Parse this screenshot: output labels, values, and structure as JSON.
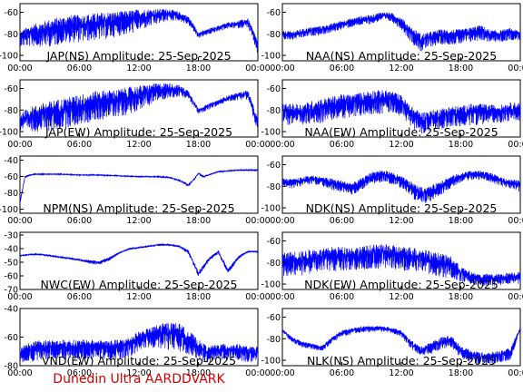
{
  "figure": {
    "credit": "Dunedin Ultra AARDDVARK",
    "trace_color": "#0000ff",
    "credit_color": "#d40000"
  },
  "chart_data": [
    {
      "type": "line",
      "title": "JAP(NS) Amplitude: 25-Sep-2025",
      "x_ticks": [
        "00:00",
        "06:00",
        "12:00",
        "18:00",
        "00:00"
      ],
      "y_ticks": [
        "-60",
        "-80",
        "-100"
      ],
      "ylim": [
        -105,
        -52
      ],
      "series": [
        {
          "x": [
            0,
            1,
            2,
            3,
            4,
            5,
            6,
            7,
            8,
            9,
            10,
            11,
            12,
            13,
            14,
            15,
            16,
            17,
            18,
            19,
            20,
            21,
            22,
            23,
            24
          ],
          "mean": [
            -82,
            -78,
            -76,
            -74,
            -72,
            -70,
            -70,
            -69,
            -68,
            -67,
            -66,
            -65,
            -63,
            -62,
            -61,
            -60,
            -62,
            -66,
            -80,
            -77,
            -74,
            -71,
            -70,
            -68,
            -90
          ],
          "spread": [
            10,
            14,
            16,
            18,
            18,
            18,
            18,
            18,
            18,
            18,
            16,
            16,
            14,
            12,
            10,
            8,
            6,
            6,
            4,
            4,
            4,
            4,
            5,
            6,
            10
          ]
        }
      ]
    },
    {
      "type": "line",
      "title": "NAA(NS) Amplitude: 25-Sep-2025",
      "x_ticks": [
        "00:00",
        "06:00",
        "12:00",
        "18:00",
        "00:00"
      ],
      "y_ticks": [
        "-60",
        "-80",
        "-100"
      ],
      "ylim": [
        -105,
        -52
      ],
      "series": [
        {
          "x": [
            0,
            1,
            2,
            3,
            4,
            5,
            6,
            7,
            8,
            9,
            10,
            11,
            12,
            13,
            14,
            15,
            16,
            17,
            18,
            19,
            20,
            21,
            22,
            23,
            24
          ],
          "mean": [
            -80,
            -80,
            -78,
            -76,
            -75,
            -73,
            -70,
            -68,
            -66,
            -65,
            -62,
            -63,
            -68,
            -78,
            -85,
            -82,
            -80,
            -80,
            -80,
            -78,
            -76,
            -80,
            -80,
            -78,
            -80
          ],
          "spread": [
            6,
            6,
            6,
            6,
            6,
            6,
            6,
            6,
            6,
            6,
            6,
            6,
            8,
            10,
            12,
            10,
            10,
            10,
            10,
            10,
            10,
            8,
            8,
            8,
            6
          ]
        }
      ]
    },
    {
      "type": "line",
      "title": "JAP(EW) Amplitude: 25-Sep-2025",
      "x_ticks": [
        "00:00",
        "06:00",
        "12:00",
        "18:00",
        "00:00"
      ],
      "y_ticks": [
        "-60",
        "-80",
        "-100"
      ],
      "ylim": [
        -105,
        -52
      ],
      "series": [
        {
          "x": [
            0,
            1,
            2,
            3,
            4,
            5,
            6,
            7,
            8,
            9,
            10,
            11,
            12,
            13,
            14,
            15,
            16,
            17,
            18,
            19,
            20,
            21,
            22,
            23,
            24
          ],
          "mean": [
            -88,
            -84,
            -82,
            -80,
            -78,
            -76,
            -74,
            -72,
            -70,
            -69,
            -68,
            -66,
            -64,
            -62,
            -60,
            -59,
            -60,
            -64,
            -80,
            -76,
            -72,
            -68,
            -66,
            -64,
            -92
          ],
          "spread": [
            12,
            16,
            18,
            20,
            20,
            20,
            20,
            20,
            20,
            18,
            18,
            18,
            16,
            14,
            12,
            10,
            8,
            6,
            4,
            4,
            4,
            4,
            5,
            6,
            10
          ]
        }
      ]
    },
    {
      "type": "line",
      "title": "NAA(EW) Amplitude: 25-Sep-2025",
      "x_ticks": [
        "00:00",
        "06:00",
        "12:00",
        "18:00",
        "00:00"
      ],
      "y_ticks": [
        "-60",
        "-80",
        "-100"
      ],
      "ylim": [
        -105,
        -52
      ],
      "series": [
        {
          "x": [
            0,
            1,
            2,
            3,
            4,
            5,
            6,
            7,
            8,
            9,
            10,
            11,
            12,
            13,
            14,
            15,
            16,
            17,
            18,
            19,
            20,
            21,
            22,
            23,
            24
          ],
          "mean": [
            -80,
            -80,
            -80,
            -78,
            -76,
            -74,
            -72,
            -72,
            -70,
            -68,
            -68,
            -68,
            -72,
            -82,
            -88,
            -86,
            -84,
            -82,
            -82,
            -80,
            -80,
            -80,
            -80,
            -78,
            -78
          ],
          "spread": [
            14,
            14,
            14,
            16,
            16,
            16,
            16,
            16,
            16,
            16,
            16,
            14,
            14,
            14,
            14,
            14,
            14,
            14,
            14,
            14,
            14,
            12,
            12,
            12,
            12
          ]
        }
      ]
    },
    {
      "type": "line",
      "title": "NPM(NS) Amplitude: 25-Sep-2025",
      "x_ticks": [
        "00:00",
        "06:00",
        "12:00",
        "18:00",
        "00:00"
      ],
      "y_ticks": [
        "-40",
        "-60",
        "-80",
        "-100"
      ],
      "ylim": [
        -105,
        -35
      ],
      "series": [
        {
          "x": [
            0,
            0.5,
            1,
            1.5,
            2,
            4,
            6,
            8,
            10,
            12,
            14,
            15,
            16,
            17,
            17.5,
            18,
            18.5,
            19,
            20,
            21,
            22,
            23,
            24
          ],
          "mean": [
            -92,
            -60,
            -58,
            -57,
            -57,
            -57,
            -58,
            -58,
            -59,
            -60,
            -60,
            -61,
            -64,
            -70,
            -64,
            -56,
            -60,
            -58,
            -54,
            -53,
            -52,
            -52,
            -52
          ],
          "spread": [
            4,
            2,
            2,
            1,
            1,
            1,
            1,
            1,
            1,
            1,
            1,
            1,
            2,
            3,
            2,
            2,
            2,
            1,
            1,
            1,
            1,
            1,
            1
          ]
        }
      ]
    },
    {
      "type": "line",
      "title": "NDK(NS) Amplitude: 25-Sep-2025",
      "x_ticks": [
        "00:00",
        "06:00",
        "12:00",
        "18:00",
        "00:00"
      ],
      "y_ticks": [
        "-60",
        "-80",
        "-100"
      ],
      "ylim": [
        -105,
        -52
      ],
      "series": [
        {
          "x": [
            0,
            1,
            2,
            3,
            4,
            5,
            6,
            7,
            8,
            9,
            10,
            11,
            12,
            13,
            14,
            15,
            16,
            17,
            18,
            19,
            20,
            21,
            22,
            23,
            24
          ],
          "mean": [
            -75,
            -76,
            -74,
            -72,
            -74,
            -76,
            -78,
            -80,
            -76,
            -70,
            -68,
            -70,
            -74,
            -80,
            -86,
            -84,
            -78,
            -74,
            -70,
            -68,
            -68,
            -70,
            -74,
            -76,
            -78
          ],
          "spread": [
            6,
            6,
            6,
            6,
            6,
            8,
            8,
            8,
            8,
            8,
            8,
            8,
            8,
            10,
            12,
            10,
            10,
            8,
            6,
            6,
            6,
            6,
            6,
            6,
            8
          ]
        }
      ]
    },
    {
      "type": "line",
      "title": "NWC(EW) Amplitude: 25-Sep-2025",
      "x_ticks": [
        "00:00",
        "06:00",
        "12:00",
        "18:00",
        "00:00"
      ],
      "y_ticks": [
        "-30",
        "-40",
        "-50",
        "-60",
        "-70"
      ],
      "ylim": [
        -70,
        -28
      ],
      "series": [
        {
          "x": [
            0,
            1,
            2,
            3,
            4,
            5,
            6,
            7,
            8,
            9,
            10,
            11,
            12,
            13,
            14,
            15,
            16,
            17,
            18,
            19,
            20,
            21,
            22,
            23,
            24
          ],
          "mean": [
            -45,
            -44,
            -44,
            -45,
            -46,
            -47,
            -48,
            -49,
            -50,
            -47,
            -43,
            -40,
            -39,
            -38,
            -37,
            -37,
            -38,
            -42,
            -58,
            -48,
            -42,
            -56,
            -46,
            -42,
            -42
          ],
          "spread": [
            1,
            1,
            1,
            1,
            1,
            1,
            1,
            2,
            2,
            2,
            1,
            1,
            1,
            1,
            1,
            1,
            1,
            2,
            3,
            2,
            2,
            3,
            2,
            1,
            1
          ]
        }
      ]
    },
    {
      "type": "line",
      "title": "NDK(EW) Amplitude: 25-Sep-2025",
      "x_ticks": [
        "00:00",
        "06:00",
        "12:00",
        "18:00",
        "00:00"
      ],
      "y_ticks": [
        "-60",
        "-80",
        "-100"
      ],
      "ylim": [
        -105,
        -52
      ],
      "series": [
        {
          "x": [
            0,
            1,
            2,
            3,
            4,
            5,
            6,
            7,
            8,
            9,
            10,
            11,
            12,
            13,
            14,
            15,
            16,
            17,
            18,
            19,
            20,
            21,
            22,
            23,
            24
          ],
          "mean": [
            -78,
            -76,
            -76,
            -74,
            -74,
            -72,
            -72,
            -72,
            -72,
            -70,
            -70,
            -70,
            -72,
            -72,
            -74,
            -76,
            -78,
            -80,
            -88,
            -92,
            -94,
            -94,
            -94,
            -92,
            -92
          ],
          "spread": [
            16,
            16,
            16,
            16,
            16,
            16,
            16,
            16,
            16,
            16,
            16,
            16,
            16,
            16,
            16,
            16,
            16,
            14,
            10,
            8,
            8,
            8,
            8,
            8,
            8
          ]
        }
      ]
    },
    {
      "type": "line",
      "title": "VND(EW) Amplitude: 25-Sep-2025",
      "x_ticks": [
        "00:00",
        "06:00",
        "12:00",
        "18:00",
        "00:00"
      ],
      "y_ticks": [
        "-40",
        "-60",
        "-80"
      ],
      "ylim": [
        -80,
        -40
      ],
      "series": [
        {
          "x": [
            0,
            1,
            2,
            3,
            4,
            5,
            6,
            7,
            8,
            9,
            10,
            11,
            12,
            13,
            14,
            15,
            16,
            17,
            18,
            19,
            20,
            21,
            22,
            23,
            24
          ],
          "mean": [
            -70,
            -68,
            -66,
            -66,
            -66,
            -66,
            -66,
            -66,
            -66,
            -66,
            -66,
            -64,
            -60,
            -58,
            -56,
            -55,
            -56,
            -60,
            -66,
            -70,
            -68,
            -68,
            -68,
            -70,
            -70
          ],
          "spread": [
            8,
            10,
            10,
            10,
            10,
            10,
            10,
            10,
            10,
            10,
            10,
            10,
            10,
            10,
            12,
            14,
            14,
            12,
            10,
            8,
            8,
            8,
            8,
            8,
            8
          ]
        }
      ]
    },
    {
      "type": "line",
      "title": "NLK(NS) Amplitude: 25-Sep-2025",
      "x_ticks": [
        "00:00",
        "06:00",
        "12:00",
        "18:00",
        "00:00"
      ],
      "y_ticks": [
        "-60",
        "-80",
        "-100"
      ],
      "ylim": [
        -105,
        -52
      ],
      "series": [
        {
          "x": [
            0,
            1,
            2,
            3,
            4,
            5,
            6,
            7,
            8,
            9,
            10,
            11,
            12,
            13,
            14,
            15,
            16,
            17,
            18,
            19,
            20,
            21,
            22,
            23,
            24
          ],
          "mean": [
            -72,
            -80,
            -84,
            -86,
            -88,
            -80,
            -74,
            -72,
            -70,
            -70,
            -70,
            -71,
            -74,
            -84,
            -90,
            -86,
            -82,
            -80,
            -90,
            -94,
            -96,
            -96,
            -94,
            -92,
            -70
          ],
          "spread": [
            2,
            4,
            4,
            4,
            4,
            4,
            4,
            4,
            4,
            4,
            4,
            4,
            4,
            6,
            6,
            8,
            8,
            8,
            8,
            8,
            8,
            8,
            8,
            8,
            2
          ]
        }
      ]
    }
  ]
}
